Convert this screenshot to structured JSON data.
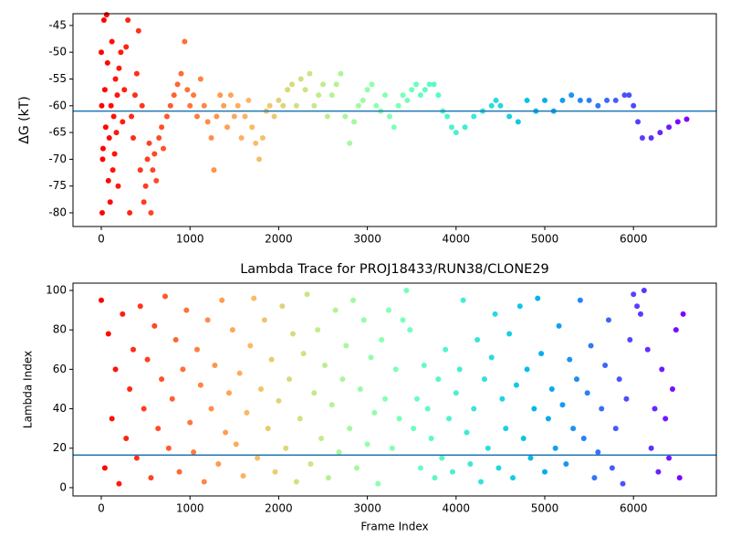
{
  "chart_data": [
    {
      "type": "scatter",
      "y_label": "ΔG (kT)",
      "colormap": "rainbow_r",
      "x": [
        0,
        5,
        10,
        15,
        20,
        30,
        40,
        50,
        60,
        70,
        80,
        90,
        100,
        110,
        120,
        130,
        140,
        150,
        160,
        170,
        180,
        190,
        200,
        220,
        240,
        260,
        280,
        300,
        320,
        340,
        360,
        380,
        400,
        420,
        440,
        460,
        480,
        500,
        520,
        540,
        560,
        580,
        600,
        620,
        650,
        680,
        700,
        740,
        780,
        820,
        860,
        900,
        940,
        970,
        1000,
        1040,
        1080,
        1120,
        1160,
        1200,
        1240,
        1270,
        1300,
        1340,
        1380,
        1420,
        1460,
        1500,
        1540,
        1580,
        1620,
        1660,
        1700,
        1740,
        1780,
        1820,
        1860,
        1900,
        1950,
        2000,
        2050,
        2100,
        2150,
        2200,
        2250,
        2300,
        2350,
        2400,
        2450,
        2500,
        2550,
        2600,
        2650,
        2700,
        2750,
        2800,
        2850,
        2900,
        2950,
        3000,
        3050,
        3100,
        3150,
        3200,
        3250,
        3300,
        3350,
        3400,
        3450,
        3500,
        3550,
        3600,
        3650,
        3700,
        3750,
        3800,
        3850,
        3900,
        3950,
        4000,
        4100,
        4200,
        4300,
        4400,
        4450,
        4500,
        4600,
        4700,
        4800,
        4900,
        5000,
        5100,
        5200,
        5300,
        5400,
        5500,
        5600,
        5700,
        5800,
        5900,
        5950,
        6000,
        6050,
        6100,
        6200,
        6300,
        6400,
        6500,
        6600
      ],
      "values": [
        -50,
        -60,
        -80,
        -70,
        -68,
        -44,
        -57,
        -64,
        -43,
        -52,
        -74,
        -66,
        -78,
        -60,
        -48,
        -72,
        -62,
        -69,
        -55,
        -65,
        -58,
        -75,
        -53,
        -50,
        -63,
        -57,
        -49,
        -44,
        -80,
        -62,
        -66,
        -58,
        -54,
        -46,
        -72,
        -60,
        -78,
        -75,
        -70,
        -67,
        -80,
        -72,
        -69,
        -74,
        -66,
        -64,
        -68,
        -62,
        -60,
        -58,
        -56,
        -54,
        -48,
        -57,
        -60,
        -58,
        -62,
        -55,
        -60,
        -63,
        -66,
        -72,
        -62,
        -58,
        -60,
        -64,
        -58,
        -62,
        -60,
        -66,
        -62,
        -59,
        -64,
        -67,
        -70,
        -66,
        -61,
        -60,
        -62,
        -59,
        -60,
        -57,
        -56,
        -60,
        -55,
        -57,
        -54,
        -60,
        -58,
        -56,
        -62,
        -58,
        -56,
        -54,
        -62,
        -67,
        -63,
        -60,
        -59,
        -57,
        -56,
        -60,
        -61,
        -58,
        -62,
        -64,
        -60,
        -58,
        -59,
        -57,
        -56,
        -58,
        -57,
        -56,
        -56,
        -58,
        -61,
        -62,
        -64,
        -65,
        -64,
        -62,
        -61,
        -60,
        -59,
        -60,
        -62,
        -63,
        -59,
        -61,
        -59,
        -61,
        -59,
        -58,
        -59,
        -59,
        -60,
        -59,
        -59,
        -58,
        -58,
        -60,
        -63,
        -66,
        -66,
        -65,
        -64,
        -63,
        -62.5
      ],
      "xlim": [
        -319,
        6934
      ],
      "ylim": [
        -82.56,
        -42.8
      ],
      "xticks": [
        0,
        1000,
        2000,
        3000,
        4000,
        5000,
        6000
      ],
      "yticks": [
        -80,
        -75,
        -70,
        -65,
        -60,
        -55,
        -50,
        -45
      ],
      "hline": {
        "value": -61,
        "color": "#1f77b4"
      }
    },
    {
      "type": "scatter",
      "title": "Lambda Trace for PROJ18433/RUN38/CLONE29",
      "x_label": "Frame Index",
      "y_label": "Lambda Index",
      "colormap": "rainbow_r",
      "x": [
        0,
        40,
        80,
        120,
        160,
        200,
        240,
        280,
        320,
        360,
        400,
        440,
        480,
        520,
        560,
        600,
        640,
        680,
        720,
        760,
        800,
        840,
        880,
        920,
        960,
        1000,
        1040,
        1080,
        1120,
        1160,
        1200,
        1240,
        1280,
        1320,
        1360,
        1400,
        1440,
        1480,
        1520,
        1560,
        1600,
        1640,
        1680,
        1720,
        1760,
        1800,
        1840,
        1880,
        1920,
        1960,
        2000,
        2040,
        2080,
        2120,
        2160,
        2200,
        2240,
        2280,
        2320,
        2360,
        2400,
        2440,
        2480,
        2520,
        2560,
        2600,
        2640,
        2680,
        2720,
        2760,
        2800,
        2840,
        2880,
        2920,
        2960,
        3000,
        3040,
        3080,
        3120,
        3160,
        3200,
        3240,
        3280,
        3320,
        3360,
        3400,
        3440,
        3480,
        3520,
        3560,
        3600,
        3640,
        3680,
        3720,
        3760,
        3800,
        3840,
        3880,
        3920,
        3960,
        4000,
        4040,
        4080,
        4120,
        4160,
        4200,
        4240,
        4280,
        4320,
        4360,
        4400,
        4440,
        4480,
        4520,
        4560,
        4600,
        4640,
        4680,
        4720,
        4760,
        4800,
        4840,
        4880,
        4920,
        4960,
        5000,
        5040,
        5080,
        5120,
        5160,
        5200,
        5240,
        5280,
        5320,
        5360,
        5400,
        5440,
        5480,
        5520,
        5560,
        5600,
        5640,
        5680,
        5720,
        5760,
        5800,
        5840,
        5880,
        5920,
        5960,
        6000,
        6040,
        6080,
        6120,
        6160,
        6200,
        6240,
        6280,
        6320,
        6360,
        6400,
        6440,
        6480,
        6520,
        6560
      ],
      "values": [
        95,
        10,
        78,
        35,
        60,
        2,
        88,
        25,
        50,
        70,
        15,
        92,
        40,
        65,
        5,
        82,
        30,
        55,
        97,
        20,
        45,
        75,
        8,
        60,
        90,
        33,
        18,
        70,
        52,
        3,
        85,
        40,
        62,
        12,
        95,
        28,
        48,
        80,
        22,
        58,
        6,
        38,
        72,
        96,
        15,
        50,
        85,
        30,
        65,
        8,
        44,
        92,
        20,
        55,
        78,
        3,
        35,
        68,
        98,
        12,
        48,
        80,
        25,
        62,
        5,
        42,
        90,
        18,
        55,
        72,
        30,
        95,
        10,
        50,
        85,
        22,
        66,
        38,
        2,
        75,
        45,
        90,
        20,
        60,
        35,
        85,
        100,
        80,
        30,
        45,
        10,
        62,
        40,
        25,
        5,
        55,
        15,
        70,
        35,
        8,
        48,
        60,
        95,
        28,
        12,
        40,
        75,
        3,
        55,
        20,
        66,
        88,
        10,
        45,
        30,
        78,
        5,
        52,
        92,
        25,
        60,
        15,
        40,
        96,
        68,
        8,
        35,
        50,
        20,
        82,
        42,
        12,
        65,
        30,
        55,
        95,
        25,
        48,
        72,
        5,
        18,
        40,
        62,
        85,
        10,
        30,
        55,
        2,
        45,
        75,
        98,
        92,
        88,
        100,
        70,
        20,
        40,
        8,
        60,
        35,
        15,
        50,
        80,
        5,
        88
      ],
      "xlim": [
        -319,
        6934
      ],
      "ylim": [
        -4.2,
        103.7
      ],
      "xticks": [
        0,
        1000,
        2000,
        3000,
        4000,
        5000,
        6000
      ],
      "yticks": [
        0,
        20,
        40,
        60,
        80,
        100
      ],
      "hline": {
        "value": 16.5,
        "color": "#1f77b4"
      }
    }
  ]
}
